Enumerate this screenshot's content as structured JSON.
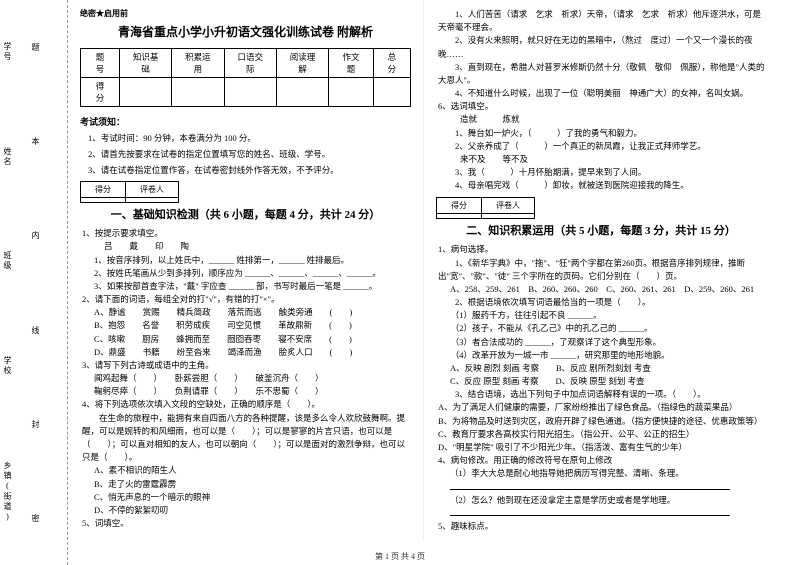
{
  "binding": {
    "labels": [
      "学号",
      "姓名",
      "班级",
      "学校",
      "乡镇(街道)"
    ],
    "marks": [
      "题",
      "本",
      "内",
      "线",
      "封",
      "密"
    ]
  },
  "header": {
    "secret": "绝密★启用前",
    "title": "青海省重点小学小升初语文强化训练试卷 附解析"
  },
  "scoreTable": {
    "cols": [
      "题 号",
      "知识基础",
      "积累运用",
      "口语交际",
      "阅读理解",
      "作文题",
      "总分"
    ],
    "row2": "得 分"
  },
  "notice": {
    "head": "考试须知：",
    "items": [
      "1、考试时间：90 分钟，本卷满分为 100 分。",
      "2、请首先按要求在试卷的指定位置填写您的姓名、班级、学号。",
      "3、请在试卷指定位置作答，在试卷密封线外作答无效，不予评分。"
    ]
  },
  "scorer": {
    "label1": "得分",
    "label2": "评卷人"
  },
  "section1": {
    "title": "一、基础知识检测（共 6 小题，每题 4 分，共计 24 分）",
    "q1": "1、按提示要求填空。",
    "q1row": "吕　　戴　　印　　陶",
    "q1a": "1、按音序排列，以上姓氏中，______ 姓排第一，______ 姓排最后。",
    "q1b": "2、按姓氏笔画从少到多排列，顺序应为 ______、______、______、______。",
    "q1c": "3、如果按部首查字法，\"戴\" 字应查 ______ 部，书写时最后一笔是 ______。",
    "q2": "2、请下面的词语，每组全对的打\"√\"，有错的打\"×\"。",
    "q2a": "A、静谧　　赏赐　　精兵简政　　落荒而逃　　触类旁通　　(　　)",
    "q2b": "B、抱怨　　名誉　　积劳成疾　　司空见惯　　革故鼎新　　(　　)",
    "q2c": "C、咳嗽　　厨房　　蜂拥而至　　囫囵吞枣　　寝不安席　　(　　)",
    "q2d": "D、鼎盛　　书籍　　纷至沓来　　竭泽而渔　　脍炙人口　　(　　)",
    "q3": "3、请写下列古诗或成语中的主角。",
    "q3a": "闻鸡起舞（　　）　　卧薪尝胆（　　）　　破釜沉舟（　　）",
    "q3b": "鞠躬尽瘁（　　）　　负荆请罪（　　）　　乐不思蜀（　　）",
    "q4": "4、将下列选项依次填入文段的空缺处，正确的顺序是（　　）。",
    "q4text": "　　在生命的旅程中，能拥有来自四面八方的各种提醒，该是多么令人欢欣鼓舞啊。提醒，可以是婉转的和风细雨，也可以是（　　）；可以是寥寥的片言只语，也可以是（　　）；可以直对相知的友人，也可以朝向（　　）；可以是面对的激烈争辩，也可以只是（　　）。",
    "q4a": "A、素不相识的陌生人",
    "q4b": "B、走了火的雷霆霹雳",
    "q4c": "C、悄无声息的一个暗示的眼神",
    "q4d": "D、不停的絮絮叨叨",
    "q5": "5、词填空。"
  },
  "col2": {
    "line1": "　　1、人们苦苦（请求　乞求　祈求）天帝，（请求　乞求　祈求）他斥逐洪水，可是天帝毫不理会。",
    "line2": "　　2、没有火来照明，就只好在无边的黑暗中，（熬过　度过）一个又一个漫长的夜晚……",
    "line3": "　　3、直到现在，希腊人对普罗米修斯仍然十分（敬佩　敬仰　佩服），称他是\"人类的大恩人\"。",
    "line4": "　　4、不知道什么时候，出现了一位（聪明美丽　神通广大）的女神，名叫女娲。",
    "q6": "6、选词填空。",
    "q6opts": "造就　　　炼就",
    "q6a": "　　1、舞台如一炉火，（　　　）了我的勇气和毅力。",
    "q6b": "　　2、父亲养成了（　　　）一个真正的新凤霞，让我正式拜师学艺。",
    "q6opts2": "来不及　　等不及",
    "q6c": "　　3、我（　　　）十月怀胎期满，提早来到了人间。",
    "q6d": "　　4、母亲唱完戏（　　　）卸妆，就被送到医院迎接我的降生。"
  },
  "section2": {
    "title": "二、知识积累运用（共 5 小题，每题 3 分，共计 15 分）",
    "q1": "1、病句选择。",
    "q1text": "　　1、《新华字典》中，\"拖\"、\"狂\"两个字都在第260页。根据音序排列规律，推断出\"宽\"、\"款\"、\"徒\" 三个字所在的页码。它们分别在（　　）页。",
    "q1opts": "A、258、259、261　B、260、260、260　C、260、261、261　D、259、260、261",
    "q2": "　　2、根据语境依次填写词语最恰当的一项是（　　）。",
    "q2a": "　　（1）服药千方，往往引起不良 ______。",
    "q2b": "　　（2）孩子，不能从《孔乙己》中的孔乙己的 ______。",
    "q2c": "　　（3）者合法成功的 ______，了观察详了这个典型形象。",
    "q2d": "　　（4）改革开放为一城一市 ______，研究那里的地形地貌。",
    "q2o": "A、反映 剧烈 刻画 考察　　B、反应 剧所烈刻划 考查",
    "q2o2": "C、反应 原型 刻画 考察　　D、反映 原型 刻划 考查",
    "q3": "　　3、结合语境，选出下列句子中加点词语解释有误的一项。（　　）。",
    "q3a": "A、为了满足人们健康的需要，厂家纷纷推出了绿色食品。（指绿色的蔬菜果品）",
    "q3b": "B、为将物品及时送到灾区，政府开辟了绿色通道。（指方便快捷的途径、优惠政策等）",
    "q3c": "C、教育厅要求各高校实行阳光招生。（指公开、公平、公正的招生）",
    "q3d": "D、\"明星学院\" 吸引了不少阳光少年。（指活泼、富有生气的少年）",
    "q4": "4、病句修改。用正确的修改符号在原句上修改",
    "q4a": "（1）李大大总是耐心地指导她把病历写得完整、清晰、条理。",
    "q4b": "（2）怎么？他到现在还没拿定主意是学历史或者是学地理。",
    "q5": "5、趣味标点。"
  },
  "footer": "第 1 页 共 4 页"
}
